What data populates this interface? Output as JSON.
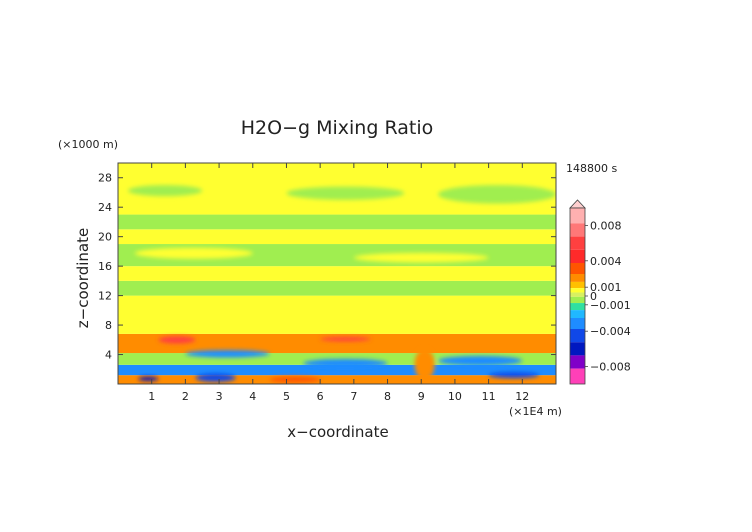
{
  "chart_data": {
    "type": "heatmap",
    "title": "H2O−g Mixing Ratio",
    "xlabel": "x−coordinate",
    "ylabel": "z−coordinate",
    "x_unit": "(×1E4 m)",
    "y_unit": "(×1000 m)",
    "time_label": "148800 s",
    "xlim": [
      0,
      13
    ],
    "ylim": [
      0,
      30
    ],
    "x_ticks": [
      1,
      2,
      3,
      4,
      5,
      6,
      7,
      8,
      9,
      10,
      11,
      12
    ],
    "y_ticks": [
      4,
      8,
      12,
      16,
      20,
      24,
      28
    ],
    "colorbar": {
      "range": [
        -0.01,
        0.01
      ],
      "tick_labels": [
        {
          "value": 0.008,
          "label": "0.008"
        },
        {
          "value": 0.004,
          "label": "0.004"
        },
        {
          "value": 0.001,
          "label": "0.001"
        },
        {
          "value": 0,
          "label": "0"
        },
        {
          "value": -0.001,
          "label": "−0.001"
        },
        {
          "value": -0.004,
          "label": "−0.004"
        },
        {
          "value": -0.008,
          "label": "−0.008"
        }
      ],
      "levels": [
        {
          "value": 0.009,
          "color": "#ffb0b0"
        },
        {
          "value": 0.0075,
          "color": "#ff7878"
        },
        {
          "value": 0.006,
          "color": "#ff4040"
        },
        {
          "value": 0.0045,
          "color": "#ff2a2a"
        },
        {
          "value": 0.003,
          "color": "#ff5500"
        },
        {
          "value": 0.002,
          "color": "#ff8c00"
        },
        {
          "value": 0.0012,
          "color": "#ffc000"
        },
        {
          "value": 0.0006,
          "color": "#ffff30"
        },
        {
          "value": 0.0002,
          "color": "#d8f060"
        },
        {
          "value": -0.0004,
          "color": "#a0ee50"
        },
        {
          "value": -0.0012,
          "color": "#30e0a0"
        },
        {
          "value": -0.002,
          "color": "#20b8ff"
        },
        {
          "value": -0.003,
          "color": "#1e8cff"
        },
        {
          "value": -0.0045,
          "color": "#1048e8"
        },
        {
          "value": -0.006,
          "color": "#0018c0"
        },
        {
          "value": -0.0075,
          "color": "#8000c8"
        },
        {
          "value": -0.009,
          "color": "#ff40b8"
        }
      ]
    },
    "field_bands": [
      {
        "z": [
          0,
          1.2
        ],
        "color": "#ff8c00"
      },
      {
        "z": [
          1.2,
          2.6
        ],
        "color": "#1e8cff"
      },
      {
        "z": [
          2.6,
          4.2
        ],
        "color": "#a0ee50"
      },
      {
        "z": [
          4.2,
          6.8
        ],
        "color": "#ff8c00"
      },
      {
        "z": [
          6.8,
          12
        ],
        "color": "#ffff30"
      },
      {
        "z": [
          12,
          14
        ],
        "color": "#a0ee50"
      },
      {
        "z": [
          14,
          16
        ],
        "color": "#ffff30"
      },
      {
        "z": [
          16,
          19
        ],
        "color": "#a0ee50"
      },
      {
        "z": [
          19,
          21
        ],
        "color": "#ffff30"
      },
      {
        "z": [
          21,
          23
        ],
        "color": "#a0ee50"
      },
      {
        "z": [
          23,
          30
        ],
        "color": "#ffff30"
      }
    ],
    "field_patches": [
      {
        "x": [
          0.3,
          2.5
        ],
        "z": [
          25.5,
          27.0
        ],
        "color": "#a0ee50"
      },
      {
        "x": [
          5.0,
          8.5
        ],
        "z": [
          25.0,
          26.8
        ],
        "color": "#a0ee50"
      },
      {
        "x": [
          9.5,
          13
        ],
        "z": [
          24.5,
          27.0
        ],
        "color": "#a0ee50"
      },
      {
        "x": [
          0.5,
          4.0
        ],
        "z": [
          17.0,
          18.5
        ],
        "color": "#ffff30"
      },
      {
        "x": [
          7.0,
          11.0
        ],
        "z": [
          16.5,
          17.8
        ],
        "color": "#ffff30"
      },
      {
        "x": [
          1.2,
          2.3
        ],
        "z": [
          5.5,
          6.5
        ],
        "color": "#ff4040"
      },
      {
        "x": [
          6.0,
          7.5
        ],
        "z": [
          5.8,
          6.4
        ],
        "color": "#ff4040"
      },
      {
        "x": [
          2.0,
          4.5
        ],
        "z": [
          3.6,
          4.6
        ],
        "color": "#1e8cff"
      },
      {
        "x": [
          5.5,
          8.0
        ],
        "z": [
          2.2,
          3.4
        ],
        "color": "#1e8cff"
      },
      {
        "x": [
          9.5,
          12.0
        ],
        "z": [
          2.5,
          3.8
        ],
        "color": "#1e8cff"
      },
      {
        "x": [
          2.3,
          3.5
        ],
        "z": [
          0.3,
          1.4
        ],
        "color": "#1048e8"
      },
      {
        "x": [
          0.6,
          1.2
        ],
        "z": [
          0.4,
          1.0
        ],
        "color": "#0018c0"
      },
      {
        "x": [
          8.8,
          9.4
        ],
        "z": [
          0.5,
          4.8
        ],
        "color": "#ff8c00"
      },
      {
        "x": [
          11.0,
          12.5
        ],
        "z": [
          0.8,
          1.6
        ],
        "color": "#1048e8"
      },
      {
        "x": [
          4.5,
          6.0
        ],
        "z": [
          0.2,
          1.0
        ],
        "color": "#ff5500"
      }
    ]
  }
}
